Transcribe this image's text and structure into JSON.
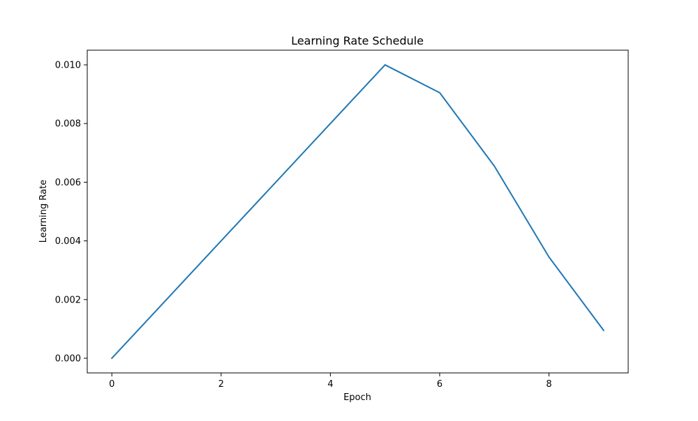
{
  "chart_data": {
    "type": "line",
    "title": "Learning Rate Schedule",
    "xlabel": "Epoch",
    "ylabel": "Learning Rate",
    "xlim": [
      -0.45,
      9.45
    ],
    "ylim": [
      -0.0005,
      0.0105
    ],
    "xticks": [
      0,
      2,
      4,
      6,
      8
    ],
    "xtick_labels": [
      "0",
      "2",
      "4",
      "6",
      "8"
    ],
    "yticks": [
      0.0,
      0.002,
      0.004,
      0.006,
      0.008,
      0.01
    ],
    "ytick_labels": [
      "0.000",
      "0.002",
      "0.004",
      "0.006",
      "0.008",
      "0.010"
    ],
    "grid": false,
    "legend": "none",
    "series": [
      {
        "color": "#1f77b4",
        "x": [
          0,
          1,
          2,
          3,
          4,
          5,
          6,
          7,
          8,
          9
        ],
        "y": [
          0.0,
          0.002,
          0.004,
          0.006,
          0.008,
          0.01,
          0.00905,
          0.00655,
          0.00345,
          0.00095
        ]
      }
    ]
  }
}
